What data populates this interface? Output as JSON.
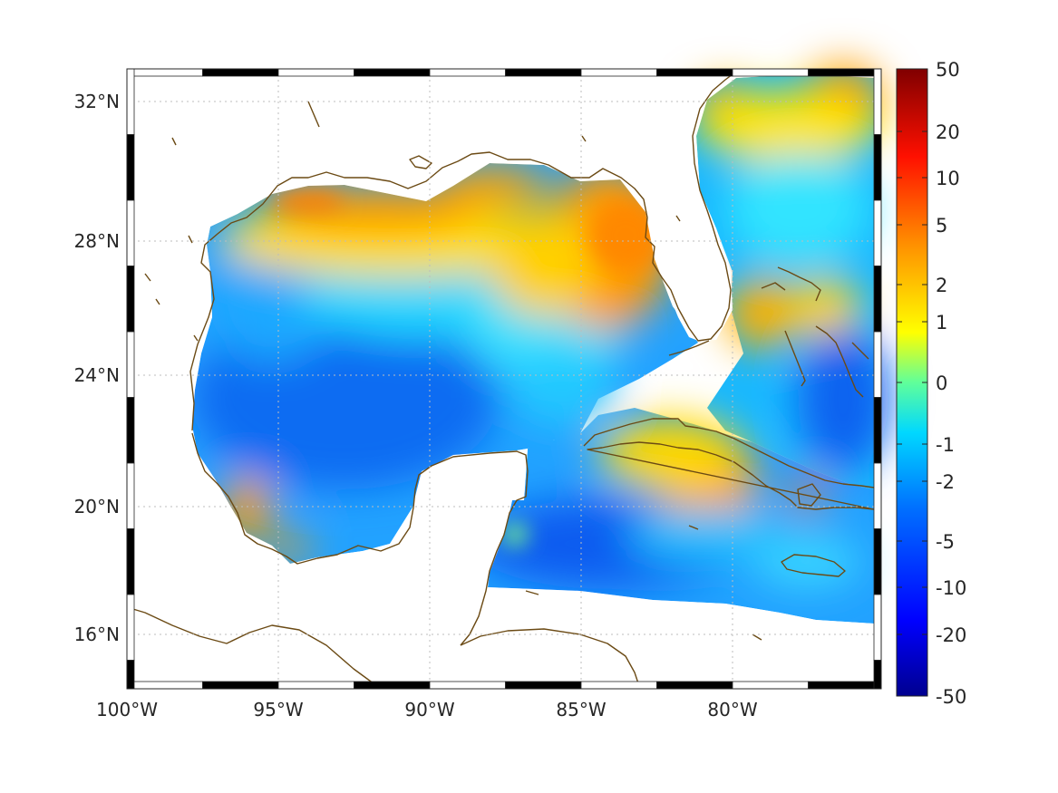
{
  "map": {
    "lat_ticks": [
      "32°N",
      "28°N",
      "24°N",
      "20°N",
      "16°N"
    ],
    "lon_ticks": [
      "100°W",
      "95°W",
      "90°W",
      "85°W",
      "80°W"
    ],
    "lat_values": [
      32,
      28,
      24,
      20,
      16
    ],
    "lon_values": [
      -100,
      -95,
      -90,
      -85,
      -80
    ],
    "extent": {
      "lon": [
        -100,
        -75
      ],
      "lat": [
        14.5,
        33
      ]
    },
    "grid": true,
    "grid_style": "dotted",
    "frame_style": "alternating black and white"
  },
  "colorbar": {
    "tick_labels": [
      "50",
      "20",
      "10",
      "5",
      "2",
      "1",
      "0",
      "-1",
      "-2",
      "-5",
      "-10",
      "-20",
      "-50"
    ],
    "colormap": "jet",
    "placement": "right"
  },
  "colors": {
    "coastline": "#6b4a14",
    "background": "#ffffff",
    "grid": "#bdbdbd",
    "axis_text": "#262626"
  },
  "regions": [
    {
      "name": "northern Gulf shelf",
      "level": "high",
      "lon": -92.5,
      "lat": 29.2
    },
    {
      "name": "west Florida shelf",
      "level": "high",
      "lon": -84.0,
      "lat": 27.5
    },
    {
      "name": "Bay of Campeche coast",
      "level": "high",
      "lon": -95.5,
      "lat": 19.5
    },
    {
      "name": "central Cuba",
      "level": "high",
      "lon": -80.5,
      "lat": 20.8
    },
    {
      "name": "eastern Cuba",
      "level": "high",
      "lon": -77.5,
      "lat": 20.3
    },
    {
      "name": "Atlantic off Carolinas",
      "level": "high",
      "lon": -76.5,
      "lat": 32.2
    },
    {
      "name": "central Gulf",
      "level": "low",
      "lon": -92.0,
      "lat": 24.0
    },
    {
      "name": "Caribbean south of Cuba",
      "level": "low",
      "lon": -83.0,
      "lat": 18.5
    },
    {
      "name": "Atlantic east of Bahamas",
      "level": "low",
      "lon": -75.8,
      "lat": 22.0
    }
  ]
}
